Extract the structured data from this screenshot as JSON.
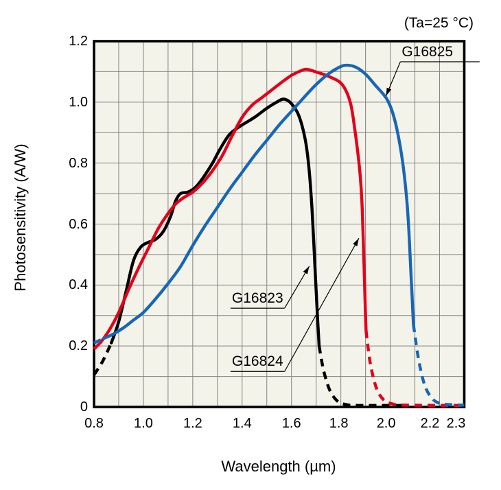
{
  "figure": {
    "condition_note": "(Ta=25 °C)"
  },
  "chart_data": {
    "type": "line",
    "title": "",
    "xlabel": "Wavelength (µm)",
    "ylabel": "Photosensitivity (A/W)",
    "xlim": [
      0.8,
      2.3
    ],
    "ylim": [
      0,
      1.2
    ],
    "grid": {
      "step_x": 0.1,
      "step_y": 0.1,
      "color": "#828282",
      "background": "#f4f3ea",
      "border_color": "#000000"
    },
    "x_ticks": [
      {
        "v": 0.8,
        "label": "0.8",
        "dx": 0
      },
      {
        "v": 1.0,
        "label": "1.0",
        "dx": 0
      },
      {
        "v": 1.2,
        "label": "1.2",
        "dx": 0
      },
      {
        "v": 1.4,
        "label": "1.4",
        "dx": 0
      },
      {
        "v": 1.6,
        "label": "1.6",
        "dx": 0
      },
      {
        "v": 1.8,
        "label": "1.8",
        "dx": -3
      },
      {
        "v": 2.0,
        "label": "2.0",
        "dx": -6
      },
      {
        "v": 2.2,
        "label": "2.2",
        "dx": -14
      },
      {
        "v": 2.3,
        "label": "2.3",
        "dx": -12
      }
    ],
    "y_ticks": [
      {
        "v": 0,
        "label": "0"
      },
      {
        "v": 0.2,
        "label": "0.2"
      },
      {
        "v": 0.4,
        "label": "0.4"
      },
      {
        "v": 0.6,
        "label": "0.6"
      },
      {
        "v": 0.8,
        "label": "0.8"
      },
      {
        "v": 1.0,
        "label": "1.0"
      },
      {
        "v": 1.2,
        "label": "1.2"
      }
    ],
    "series": [
      {
        "name": "G16823",
        "color": "#000000",
        "peak": {
          "wavelength_um": 1.57,
          "photosensitivity_aw": 1.01
        },
        "dashed_start": [
          [
            0.8,
            0.105
          ],
          [
            0.835,
            0.15
          ],
          [
            0.87,
            0.21
          ]
        ],
        "solid": [
          [
            0.87,
            0.21
          ],
          [
            0.9,
            0.28
          ],
          [
            0.93,
            0.38
          ],
          [
            0.96,
            0.48
          ],
          [
            0.99,
            0.525
          ],
          [
            1.02,
            0.54
          ],
          [
            1.05,
            0.55
          ],
          [
            1.08,
            0.575
          ],
          [
            1.11,
            0.625
          ],
          [
            1.13,
            0.675
          ],
          [
            1.15,
            0.7
          ],
          [
            1.18,
            0.705
          ],
          [
            1.21,
            0.72
          ],
          [
            1.24,
            0.75
          ],
          [
            1.28,
            0.8
          ],
          [
            1.31,
            0.845
          ],
          [
            1.35,
            0.895
          ],
          [
            1.4,
            0.925
          ],
          [
            1.45,
            0.95
          ],
          [
            1.5,
            0.98
          ],
          [
            1.54,
            1.0
          ],
          [
            1.57,
            1.01
          ],
          [
            1.6,
            0.995
          ],
          [
            1.63,
            0.955
          ],
          [
            1.655,
            0.88
          ],
          [
            1.67,
            0.79
          ],
          [
            1.683,
            0.65
          ],
          [
            1.695,
            0.46
          ],
          [
            1.705,
            0.3
          ],
          [
            1.712,
            0.2
          ]
        ],
        "dashed_end": [
          [
            1.712,
            0.2
          ],
          [
            1.73,
            0.12
          ],
          [
            1.755,
            0.055
          ],
          [
            1.785,
            0.02
          ],
          [
            1.82,
            0.008
          ],
          [
            1.87,
            0.005
          ],
          [
            2.05,
            0.005
          ]
        ]
      },
      {
        "name": "G16824",
        "color": "#e3001b",
        "peak": {
          "wavelength_um": 1.66,
          "photosensitivity_aw": 1.11
        },
        "dashed_start": [
          [
            0.8,
            0.19
          ],
          [
            0.825,
            0.21
          ]
        ],
        "solid": [
          [
            0.825,
            0.21
          ],
          [
            0.86,
            0.25
          ],
          [
            0.9,
            0.31
          ],
          [
            0.94,
            0.385
          ],
          [
            0.98,
            0.455
          ],
          [
            1.02,
            0.52
          ],
          [
            1.06,
            0.585
          ],
          [
            1.1,
            0.635
          ],
          [
            1.13,
            0.665
          ],
          [
            1.16,
            0.685
          ],
          [
            1.2,
            0.705
          ],
          [
            1.24,
            0.735
          ],
          [
            1.28,
            0.775
          ],
          [
            1.32,
            0.825
          ],
          [
            1.36,
            0.89
          ],
          [
            1.4,
            0.95
          ],
          [
            1.44,
            0.99
          ],
          [
            1.48,
            1.015
          ],
          [
            1.52,
            1.04
          ],
          [
            1.56,
            1.065
          ],
          [
            1.6,
            1.088
          ],
          [
            1.63,
            1.1
          ],
          [
            1.66,
            1.108
          ],
          [
            1.7,
            1.099
          ],
          [
            1.755,
            1.083
          ],
          [
            1.805,
            1.058
          ],
          [
            1.838,
            1.0
          ],
          [
            1.857,
            0.907
          ],
          [
            1.874,
            0.795
          ],
          [
            1.885,
            0.68
          ],
          [
            1.894,
            0.46
          ],
          [
            1.899,
            0.32
          ],
          [
            1.902,
            0.25
          ]
        ],
        "dashed_end": [
          [
            1.902,
            0.25
          ],
          [
            1.92,
            0.14
          ],
          [
            1.945,
            0.06
          ],
          [
            1.975,
            0.022
          ],
          [
            2.01,
            0.01
          ],
          [
            2.06,
            0.006
          ],
          [
            2.3,
            0.005
          ]
        ]
      },
      {
        "name": "G16825",
        "color": "#1767b5",
        "peak": {
          "wavelength_um": 1.82,
          "photosensitivity_aw": 1.12
        },
        "dashed_start": [
          [
            0.8,
            0.21
          ],
          [
            0.84,
            0.225
          ]
        ],
        "solid": [
          [
            0.84,
            0.225
          ],
          [
            0.88,
            0.24
          ],
          [
            0.92,
            0.26
          ],
          [
            0.96,
            0.285
          ],
          [
            1.0,
            0.31
          ],
          [
            1.05,
            0.355
          ],
          [
            1.1,
            0.405
          ],
          [
            1.15,
            0.46
          ],
          [
            1.2,
            0.53
          ],
          [
            1.25,
            0.595
          ],
          [
            1.3,
            0.655
          ],
          [
            1.35,
            0.715
          ],
          [
            1.4,
            0.77
          ],
          [
            1.45,
            0.825
          ],
          [
            1.5,
            0.875
          ],
          [
            1.55,
            0.925
          ],
          [
            1.6,
            0.97
          ],
          [
            1.65,
            1.015
          ],
          [
            1.7,
            1.058
          ],
          [
            1.75,
            1.093
          ],
          [
            1.79,
            1.113
          ],
          [
            1.82,
            1.121
          ],
          [
            1.86,
            1.115
          ],
          [
            1.9,
            1.092
          ],
          [
            1.94,
            1.055
          ],
          [
            1.97,
            1.028
          ],
          [
            1.99,
            1.005
          ],
          [
            2.01,
            0.965
          ],
          [
            2.03,
            0.9
          ],
          [
            2.05,
            0.805
          ],
          [
            2.066,
            0.69
          ],
          [
            2.075,
            0.585
          ],
          [
            2.082,
            0.47
          ],
          [
            2.088,
            0.37
          ],
          [
            2.094,
            0.27
          ]
        ],
        "dashed_end": [
          [
            2.094,
            0.27
          ],
          [
            2.115,
            0.155
          ],
          [
            2.14,
            0.07
          ],
          [
            2.17,
            0.028
          ],
          [
            2.2,
            0.012
          ],
          [
            2.25,
            0.007
          ],
          [
            2.3,
            0.006
          ]
        ]
      }
    ],
    "annotations": [
      {
        "series": "G16823",
        "underline_x": [
          1.353,
          1.572
        ],
        "underline_y": 0.324,
        "tip": [
          1.672,
          0.462
        ],
        "leader_from": "right"
      },
      {
        "series": "G16824",
        "underline_x": [
          1.353,
          1.572
        ],
        "underline_y": 0.1165,
        "tip": [
          1.873,
          0.5535
        ],
        "leader_from": "right"
      },
      {
        "series": "G16825",
        "underline_x": [
          2.041,
          2.362
        ],
        "underline_y": 1.1325,
        "tip": [
          1.983,
          1.0205
        ],
        "leader_from": "left"
      }
    ],
    "legend_position": "inline-annotations",
    "grid_on": true
  }
}
